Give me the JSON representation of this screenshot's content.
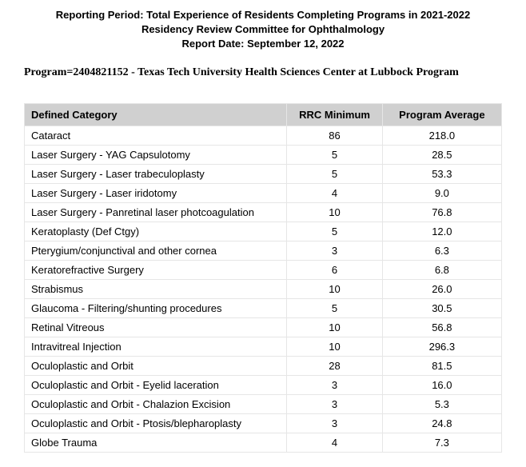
{
  "header": {
    "line1": "Reporting Period: Total Experience of Residents Completing Programs in 2021-2022",
    "line2": "Residency Review Committee for Ophthalmology",
    "line3": "Report Date: September 12, 2022"
  },
  "program_line": "Program=2404821152 - Texas Tech University Health Sciences Center at Lubbock Program",
  "table": {
    "columns": {
      "category": "Defined Category",
      "minimum": "RRC Minimum",
      "average": "Program Average"
    },
    "rows": [
      {
        "category": "Cataract",
        "minimum": "86",
        "average": "218.0"
      },
      {
        "category": "Laser Surgery - YAG Capsulotomy",
        "minimum": "5",
        "average": "28.5"
      },
      {
        "category": "Laser Surgery - Laser trabeculoplasty",
        "minimum": "5",
        "average": "53.3"
      },
      {
        "category": "Laser Surgery - Laser iridotomy",
        "minimum": "4",
        "average": "9.0"
      },
      {
        "category": "Laser Surgery - Panretinal laser photcoagulation",
        "minimum": "10",
        "average": "76.8"
      },
      {
        "category": "Keratoplasty (Def Ctgy)",
        "minimum": "5",
        "average": "12.0"
      },
      {
        "category": "Pterygium/conjunctival and other cornea",
        "minimum": "3",
        "average": "6.3"
      },
      {
        "category": "Keratorefractive Surgery",
        "minimum": "6",
        "average": "6.8"
      },
      {
        "category": "Strabismus",
        "minimum": "10",
        "average": "26.0"
      },
      {
        "category": "Glaucoma - Filtering/shunting procedures",
        "minimum": "5",
        "average": "30.5"
      },
      {
        "category": "Retinal Vitreous",
        "minimum": "10",
        "average": "56.8"
      },
      {
        "category": "Intravitreal Injection",
        "minimum": "10",
        "average": "296.3"
      },
      {
        "category": "Oculoplastic and Orbit",
        "minimum": "28",
        "average": "81.5"
      },
      {
        "category": "Oculoplastic and Orbit - Eyelid laceration",
        "minimum": "3",
        "average": "16.0"
      },
      {
        "category": "Oculoplastic and Orbit - Chalazion Excision",
        "minimum": "3",
        "average": "5.3"
      },
      {
        "category": "Oculoplastic and Orbit - Ptosis/blepharoplasty",
        "minimum": "3",
        "average": "24.8"
      },
      {
        "category": "Globe Trauma",
        "minimum": "4",
        "average": "7.3"
      }
    ],
    "styling": {
      "header_bg": "#d0d0d0",
      "border_color": "#e6e6e6",
      "font_size": 13,
      "cat_align": "left",
      "num_align": "center"
    }
  }
}
